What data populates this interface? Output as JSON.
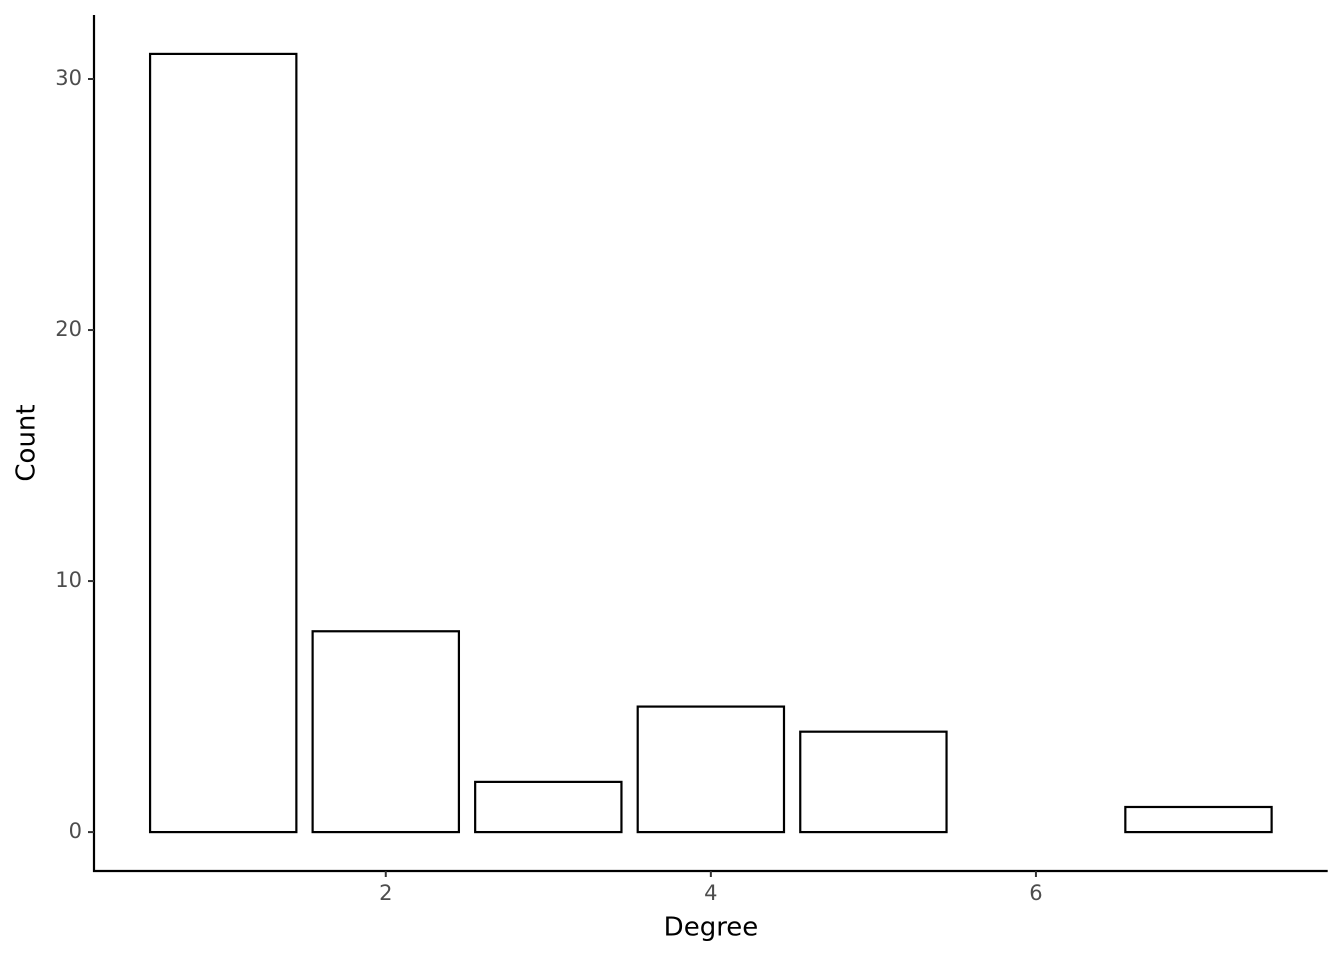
{
  "chart_data": {
    "type": "bar",
    "x_label": "Degree",
    "y_label": "Count",
    "x": [
      1,
      2,
      3,
      4,
      5,
      7
    ],
    "values": [
      31,
      8,
      2,
      5,
      4,
      1
    ],
    "color": "#ffffff",
    "edgecolor": "#000000",
    "xlim": [
      0.205,
      7.795
    ],
    "xticks": [
      2,
      4,
      6
    ],
    "ylim": [
      -1.55,
      32.55
    ],
    "yticks": [
      0,
      10,
      20,
      30
    ],
    "grid": false
  }
}
